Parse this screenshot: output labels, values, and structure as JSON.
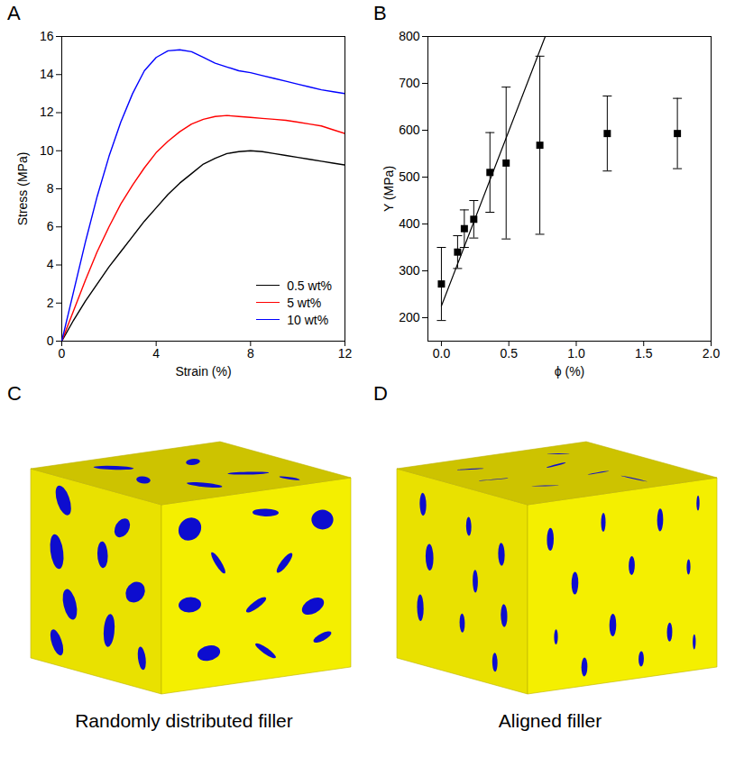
{
  "chart_data": [
    {
      "panel": "A",
      "type": "line",
      "xlabel": "Strain (%)",
      "ylabel": "Stress (MPa)",
      "x": [
        0,
        0.5,
        1,
        1.5,
        2,
        2.5,
        3,
        3.5,
        4,
        4.5,
        5,
        5.5,
        6,
        6.5,
        7,
        7.5,
        8,
        8.5,
        9,
        9.5,
        10,
        10.5,
        11,
        11.5,
        12
      ],
      "series": [
        {
          "name": "0.5 wt%",
          "color": "#000000",
          "values": [
            0,
            1.1,
            2.1,
            3.0,
            3.9,
            4.7,
            5.5,
            6.3,
            7.0,
            7.7,
            8.3,
            8.8,
            9.3,
            9.6,
            9.85,
            9.95,
            10.0,
            9.95,
            9.85,
            9.75,
            9.65,
            9.55,
            9.45,
            9.35,
            9.25
          ]
        },
        {
          "name": "5 wt%",
          "color": "#ff0000",
          "values": [
            0,
            1.6,
            3.2,
            4.7,
            6.0,
            7.2,
            8.2,
            9.1,
            9.9,
            10.5,
            11.0,
            11.4,
            11.65,
            11.8,
            11.85,
            11.8,
            11.75,
            11.7,
            11.65,
            11.6,
            11.5,
            11.4,
            11.3,
            11.1,
            10.9
          ]
        },
        {
          "name": "10 wt%",
          "color": "#0000ff",
          "values": [
            0,
            2.6,
            5.2,
            7.6,
            9.7,
            11.5,
            13.0,
            14.2,
            14.9,
            15.25,
            15.3,
            15.2,
            14.9,
            14.6,
            14.4,
            14.2,
            14.1,
            13.95,
            13.8,
            13.65,
            13.5,
            13.35,
            13.2,
            13.1,
            13.0
          ]
        }
      ],
      "xlim": [
        0,
        12
      ],
      "xticks": [
        0,
        4,
        8,
        12
      ],
      "ylim": [
        0,
        16
      ],
      "yticks": [
        0,
        2,
        4,
        6,
        8,
        10,
        12,
        14,
        16
      ],
      "legend": "bottom-right"
    },
    {
      "panel": "B",
      "type": "scatter",
      "xlabel": "ϕ (%)",
      "ylabel": "Y (MPa)",
      "x": [
        0,
        0.12,
        0.17,
        0.24,
        0.36,
        0.48,
        0.73,
        1.23,
        1.75
      ],
      "values": [
        272,
        340,
        390,
        410,
        510,
        530,
        568,
        593,
        593
      ],
      "errors": [
        78,
        35,
        40,
        40,
        85,
        162,
        190,
        80,
        75
      ],
      "color": "#000000",
      "marker": "square",
      "fit": {
        "x": [
          0,
          0.77
        ],
        "values": [
          225,
          800
        ]
      },
      "xlim": [
        -0.1,
        2.0
      ],
      "xticks": [
        {
          "value": 0,
          "label": "0.0"
        },
        {
          "value": 0.5,
          "label": "0.5"
        },
        {
          "value": 1,
          "label": "1.0"
        },
        {
          "value": 1.5,
          "label": "1.5"
        },
        {
          "value": 2,
          "label": "2.0"
        }
      ],
      "ylim": [
        150,
        800
      ],
      "yticks": [
        200,
        300,
        400,
        500,
        600,
        700,
        800
      ]
    }
  ],
  "diagrams": [
    {
      "panel": "C",
      "caption": "Randomly distributed filler"
    },
    {
      "panel": "D",
      "caption": "Aligned filler"
    }
  ]
}
